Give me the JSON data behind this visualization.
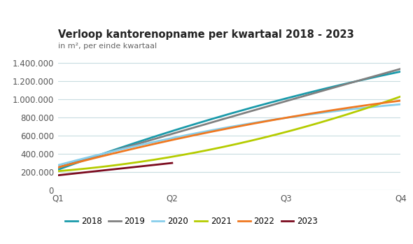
{
  "title": "Verloop kantorenopname per kwartaal 2018 - 2023",
  "subtitle": "in m², per einde kwartaal",
  "x_labels": [
    "Q1",
    "Q2",
    "Q3",
    "Q4"
  ],
  "x_values": [
    1,
    2,
    3,
    4
  ],
  "series": {
    "2018": {
      "color": "#1a9aaa",
      "data": [
        230000,
        640000,
        1020000,
        1300000
      ]
    },
    "2019": {
      "color": "#808080",
      "data": [
        245000,
        640000,
        960000,
        1340000
      ]
    },
    "2020": {
      "color": "#87ceeb",
      "data": [
        260000,
        620000,
        750000,
        960000
      ]
    },
    "2021": {
      "color": "#b5cc00",
      "data": [
        200000,
        400000,
        610000,
        1040000
      ]
    },
    "2022": {
      "color": "#f07820",
      "data": [
        265000,
        510000,
        840000,
        970000
      ]
    },
    "2023": {
      "color": "#7b0a1e",
      "data": [
        165000,
        300000,
        null,
        null
      ]
    }
  },
  "ylim": [
    0,
    1500000
  ],
  "yticks": [
    0,
    200000,
    400000,
    600000,
    800000,
    1000000,
    1200000,
    1400000
  ],
  "ytick_labels": [
    "0",
    "200.000",
    "400.000",
    "600.000",
    "800.000",
    "1.000.000",
    "1.200.000",
    "1.400.000"
  ],
  "background_color": "#ffffff",
  "grid_color": "#c8dce0",
  "legend_order": [
    "2018",
    "2019",
    "2020",
    "2021",
    "2022",
    "2023"
  ]
}
